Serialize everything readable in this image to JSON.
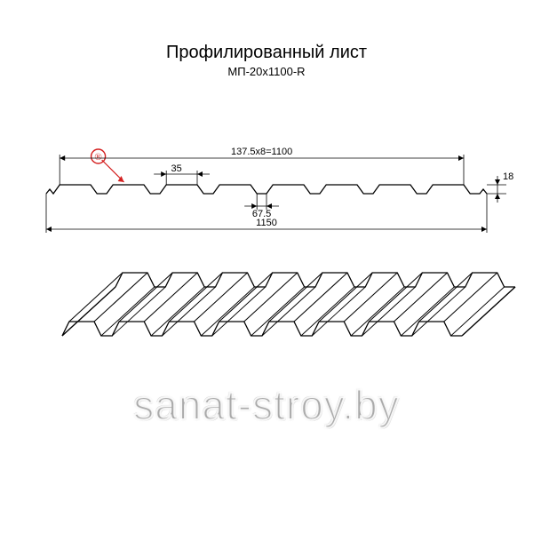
{
  "title": {
    "main": "Профилированный лист",
    "sub": "МП-20х1100-R"
  },
  "dimensions": {
    "top_span": "137.5x8=1100",
    "small_top": "35",
    "gap_bottom": "67.5",
    "full_width": "1150",
    "height": "18"
  },
  "registered_symbol": "®",
  "watermark": "sanat-stroy.by",
  "colors": {
    "line": "#000000",
    "accent": "#d42020",
    "bg": "#ffffff"
  },
  "stroke": {
    "profile": 1.3,
    "dim": 0.8,
    "accent": 1.2
  }
}
